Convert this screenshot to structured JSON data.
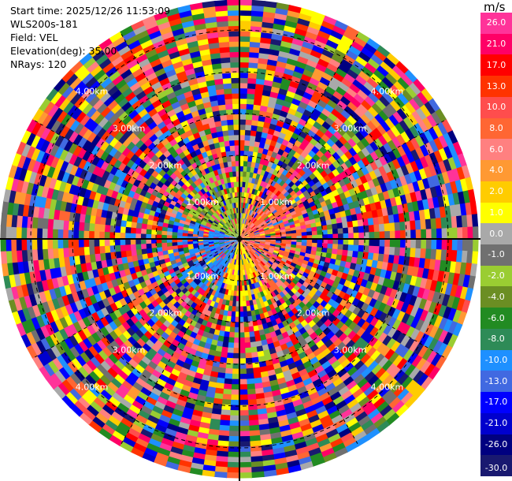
{
  "info": {
    "start_time": "Start time: 2025/12/26 11:53:09",
    "site": "WLS200s-181",
    "field": "Field: VEL",
    "elevation": "Elevation(deg): 35.00",
    "nrays": "NRays: 120"
  },
  "colorbar": {
    "unit": "m/s",
    "colors": [
      "#ff3399",
      "#ff0066",
      "#ff0000",
      "#ff3300",
      "#ff4d4d",
      "#ff6633",
      "#ff8080",
      "#ff9933",
      "#ffcc00",
      "#ffff00",
      "#a9a9a9",
      "#707070",
      "#9acd32",
      "#6b8e23",
      "#228b22",
      "#2e8b57",
      "#1e90ff",
      "#4169e1",
      "#0000ff",
      "#0000cd",
      "#000080",
      "#191970"
    ],
    "ticks": [
      "26.0",
      "21.0",
      "17.0",
      "13.0",
      "10.0",
      "8.0",
      "6.0",
      "4.0",
      "2.0",
      "1.0",
      "0.0",
      "-1.0",
      "-2.0",
      "-4.0",
      "-6.0",
      "-8.0",
      "-10.0",
      "-13.0",
      "-17.0",
      "-21.0",
      "-26.0",
      "-30.0"
    ]
  },
  "rings": {
    "km": [
      1,
      2,
      3,
      4,
      5
    ],
    "labels": [
      "1.00km",
      "2.00km",
      "3.00km",
      "4.00km",
      "5.00km"
    ]
  },
  "map_data": {
    "type": "radar_ppi",
    "field": "VEL",
    "unit": "m/s",
    "nrays": 120,
    "elevation_deg": 35.0,
    "center_colors": {
      "north_west": "#9acd32",
      "south_west": "#1e90ff",
      "east": "#ff6633",
      "north_east": "#ffcc00"
    }
  }
}
